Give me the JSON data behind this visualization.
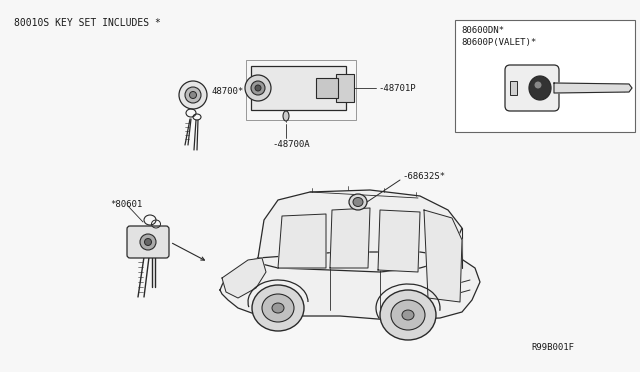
{
  "bg_color": "#f7f7f7",
  "line_color": "#2a2a2a",
  "text_color": "#1a1a1a",
  "title_text": "80010S KEY SET INCLUDES *",
  "label_48700": "48700*",
  "label_48701P": "-48701P",
  "label_48700A": "-48700A",
  "label_68632S": "-68632S*",
  "label_80601": "*80601",
  "label_80600DN": "80600DN*",
  "label_80600P": "80600P(VALET)*",
  "label_R99B001F": "R99B001F",
  "figsize": [
    6.4,
    3.72
  ],
  "dpi": 100
}
